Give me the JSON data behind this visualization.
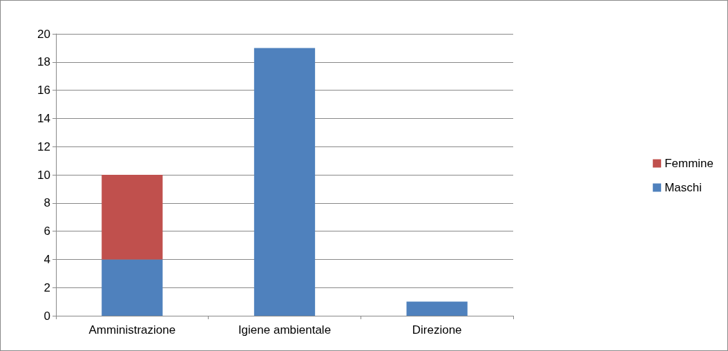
{
  "chart_data": {
    "type": "bar",
    "stacked": true,
    "categories": [
      "Amministrazione",
      "Igiene ambientale",
      "Direzione"
    ],
    "series": [
      {
        "name": "Maschi",
        "color": "#4f81bd",
        "values": [
          4,
          19,
          1
        ]
      },
      {
        "name": "Femmine",
        "color": "#c0504d",
        "values": [
          6,
          0,
          0
        ]
      }
    ],
    "ylim": [
      0,
      20
    ],
    "yticks": [
      0,
      2,
      4,
      6,
      8,
      10,
      12,
      14,
      16,
      18,
      20
    ],
    "grid": "y",
    "legend": "right"
  }
}
